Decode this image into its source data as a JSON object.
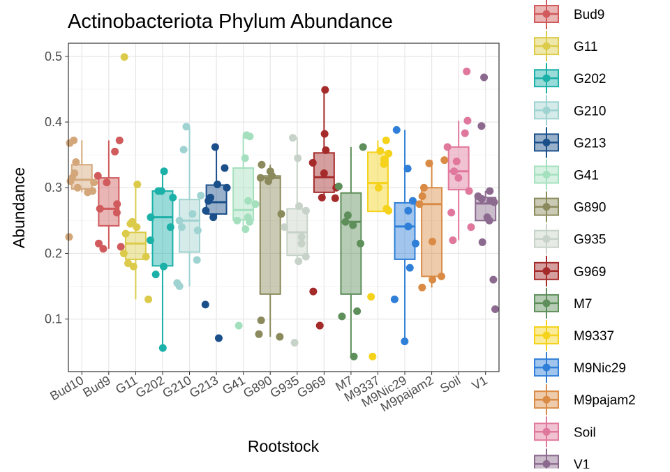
{
  "chart_data": {
    "type": "box",
    "title": "Actinobacteriota Phylum Abundance",
    "xlabel": "Rootstock",
    "ylabel": "Abundance",
    "ylim": [
      0.02,
      0.52
    ],
    "yticks": [
      0.1,
      0.2,
      0.3,
      0.4,
      0.5
    ],
    "grid": true,
    "legend_position": "right",
    "categories": [
      "Bud10",
      "Bud9",
      "G11",
      "G202",
      "G210",
      "G213",
      "G41",
      "G890",
      "G935",
      "G969",
      "M7",
      "M9337",
      "M9Nic29",
      "M9pajam2",
      "Soil",
      "V1"
    ],
    "colors": [
      "#D4A77A",
      "#D05A5C",
      "#DCCB4A",
      "#1BB0A8",
      "#9FD3D1",
      "#1B4F8A",
      "#A4E0BE",
      "#8B8A5C",
      "#C7D3C8",
      "#A52A2A",
      "#5E8F5A",
      "#F5D21C",
      "#2F7FD8",
      "#D98B45",
      "#E0779C",
      "#8C6A8F"
    ],
    "boxes": [
      {
        "q1": 0.298,
        "median": 0.312,
        "q3": 0.335,
        "min": 0.293,
        "max": 0.372
      },
      {
        "q1": 0.242,
        "median": 0.268,
        "q3": 0.315,
        "min": 0.207,
        "max": 0.372
      },
      {
        "q1": 0.191,
        "median": 0.215,
        "q3": 0.232,
        "min": 0.13,
        "max": 0.305
      },
      {
        "q1": 0.181,
        "median": 0.255,
        "q3": 0.295,
        "min": 0.056,
        "max": 0.325
      },
      {
        "q1": 0.202,
        "median": 0.25,
        "q3": 0.282,
        "min": 0.15,
        "max": 0.393
      },
      {
        "q1": 0.26,
        "median": 0.278,
        "q3": 0.304,
        "min": 0.255,
        "max": 0.362
      },
      {
        "q1": 0.251,
        "median": 0.266,
        "q3": 0.33,
        "min": 0.237,
        "max": 0.38
      },
      {
        "q1": 0.138,
        "median": 0.315,
        "q3": 0.318,
        "min": 0.073,
        "max": 0.335
      },
      {
        "q1": 0.197,
        "median": 0.232,
        "q3": 0.268,
        "min": 0.187,
        "max": 0.376
      },
      {
        "q1": 0.293,
        "median": 0.316,
        "q3": 0.353,
        "min": 0.284,
        "max": 0.449
      },
      {
        "q1": 0.138,
        "median": 0.248,
        "q3": 0.292,
        "min": 0.043,
        "max": 0.362
      },
      {
        "q1": 0.264,
        "median": 0.307,
        "q3": 0.354,
        "min": 0.264,
        "max": 0.372
      },
      {
        "q1": 0.191,
        "median": 0.241,
        "q3": 0.277,
        "min": 0.066,
        "max": 0.388
      },
      {
        "q1": 0.165,
        "median": 0.275,
        "q3": 0.3,
        "min": 0.148,
        "max": 0.342
      },
      {
        "q1": 0.297,
        "median": 0.325,
        "q3": 0.362,
        "min": 0.22,
        "max": 0.402
      },
      {
        "q1": 0.25,
        "median": 0.276,
        "q3": 0.285,
        "min": 0.249,
        "max": 0.295
      }
    ],
    "points": [
      [
        0.225,
        0.372,
        0.368,
        0.339,
        0.322,
        0.31,
        0.308,
        0.315,
        0.3,
        0.295,
        0.293
      ],
      [
        0.372,
        0.355,
        0.318,
        0.308,
        0.275,
        0.268,
        0.262,
        0.215,
        0.21,
        0.207
      ],
      [
        0.499,
        0.305,
        0.248,
        0.245,
        0.24,
        0.23,
        0.2,
        0.195,
        0.185,
        0.18,
        0.13
      ],
      [
        0.325,
        0.295,
        0.295,
        0.285,
        0.255,
        0.24,
        0.22,
        0.18,
        0.168,
        0.056
      ],
      [
        0.393,
        0.358,
        0.288,
        0.26,
        0.25,
        0.24,
        0.235,
        0.19,
        0.155,
        0.15
      ],
      [
        0.362,
        0.33,
        0.305,
        0.3,
        0.285,
        0.28,
        0.265,
        0.255,
        0.122,
        0.071
      ],
      [
        0.38,
        0.378,
        0.345,
        0.28,
        0.275,
        0.255,
        0.25,
        0.248,
        0.237,
        0.09
      ],
      [
        0.335,
        0.325,
        0.318,
        0.315,
        0.31,
        0.26,
        0.098,
        0.077,
        0.073
      ],
      [
        0.376,
        0.345,
        0.272,
        0.265,
        0.24,
        0.225,
        0.215,
        0.195,
        0.188,
        0.064
      ],
      [
        0.449,
        0.382,
        0.357,
        0.338,
        0.322,
        0.3,
        0.285,
        0.284,
        0.142,
        0.09
      ],
      [
        0.362,
        0.302,
        0.258,
        0.248,
        0.243,
        0.215,
        0.112,
        0.104,
        0.043
      ],
      [
        0.372,
        0.356,
        0.352,
        0.343,
        0.336,
        0.3,
        0.268,
        0.265,
        0.134,
        0.043
      ],
      [
        0.388,
        0.329,
        0.28,
        0.265,
        0.241,
        0.215,
        0.178,
        0.13,
        0.066
      ],
      [
        0.342,
        0.337,
        0.3,
        0.287,
        0.275,
        0.218,
        0.165,
        0.16,
        0.148
      ],
      [
        0.477,
        0.402,
        0.383,
        0.362,
        0.34,
        0.325,
        0.315,
        0.295,
        0.262,
        0.24,
        0.22
      ],
      [
        0.468,
        0.394,
        0.295,
        0.287,
        0.283,
        0.28,
        0.278,
        0.255,
        0.25,
        0.217,
        0.16,
        0.115
      ]
    ]
  }
}
